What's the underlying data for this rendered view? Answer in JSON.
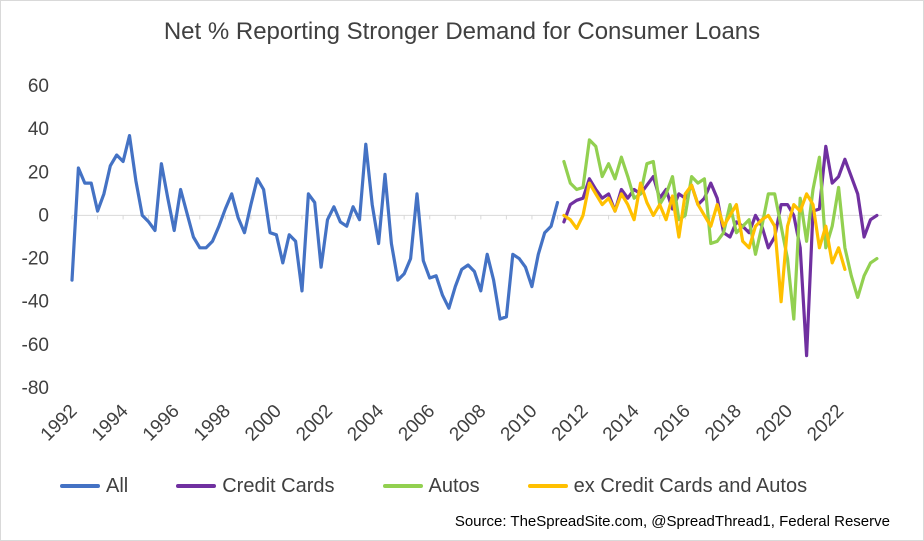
{
  "chart_data": {
    "type": "line",
    "title": "Net % Reporting Stronger Demand for Consumer Loans",
    "source": "Source: TheSpreadSite.com, @SpreadThread1, Federal Reserve",
    "xlim": [
      1992,
      2023.7
    ],
    "ylim": [
      -80,
      60
    ],
    "yticks": [
      60,
      40,
      20,
      0,
      -20,
      -40,
      -60,
      -80
    ],
    "xticks": [
      1992,
      1994,
      1996,
      1998,
      2000,
      2002,
      2004,
      2006,
      2008,
      2010,
      2012,
      2014,
      2016,
      2018,
      2020,
      2022
    ],
    "grid": false,
    "legend_position": "bottom",
    "series": [
      {
        "name": "All",
        "color": "#4472c4",
        "points": [
          [
            1992,
            -30
          ],
          [
            1992.25,
            22
          ],
          [
            1992.5,
            15
          ],
          [
            1992.75,
            15
          ],
          [
            1993,
            2
          ],
          [
            1993.25,
            10
          ],
          [
            1993.5,
            23
          ],
          [
            1993.75,
            28
          ],
          [
            1994,
            25
          ],
          [
            1994.25,
            37
          ],
          [
            1994.5,
            16
          ],
          [
            1994.75,
            0
          ],
          [
            1995,
            -3
          ],
          [
            1995.25,
            -7
          ],
          [
            1995.5,
            24
          ],
          [
            1995.75,
            8
          ],
          [
            1996,
            -7
          ],
          [
            1996.25,
            12
          ],
          [
            1996.5,
            1
          ],
          [
            1996.75,
            -10
          ],
          [
            1997,
            -15
          ],
          [
            1997.25,
            -15
          ],
          [
            1997.5,
            -12
          ],
          [
            1997.75,
            -5
          ],
          [
            1998,
            3
          ],
          [
            1998.25,
            10
          ],
          [
            1998.5,
            -1
          ],
          [
            1998.75,
            -8
          ],
          [
            1999,
            5
          ],
          [
            1999.25,
            17
          ],
          [
            1999.5,
            12
          ],
          [
            1999.75,
            -8
          ],
          [
            2000,
            -9
          ],
          [
            2000.25,
            -22
          ],
          [
            2000.5,
            -9
          ],
          [
            2000.75,
            -12
          ],
          [
            2001,
            -35
          ],
          [
            2001.25,
            10
          ],
          [
            2001.5,
            6
          ],
          [
            2001.75,
            -24
          ],
          [
            2002,
            -2
          ],
          [
            2002.25,
            4
          ],
          [
            2002.5,
            -3
          ],
          [
            2002.75,
            -5
          ],
          [
            2003,
            4
          ],
          [
            2003.25,
            -2
          ],
          [
            2003.5,
            33
          ],
          [
            2003.75,
            5
          ],
          [
            2004,
            -13
          ],
          [
            2004.25,
            19
          ],
          [
            2004.5,
            -13
          ],
          [
            2004.75,
            -30
          ],
          [
            2005,
            -27
          ],
          [
            2005.25,
            -20
          ],
          [
            2005.5,
            10
          ],
          [
            2005.75,
            -21
          ],
          [
            2006,
            -29
          ],
          [
            2006.25,
            -28
          ],
          [
            2006.5,
            -37
          ],
          [
            2006.75,
            -43
          ],
          [
            2007,
            -33
          ],
          [
            2007.25,
            -25
          ],
          [
            2007.5,
            -23
          ],
          [
            2007.75,
            -26
          ],
          [
            2008,
            -35
          ],
          [
            2008.25,
            -18
          ],
          [
            2008.5,
            -30
          ],
          [
            2008.75,
            -48
          ],
          [
            2009,
            -47
          ],
          [
            2009.25,
            -18
          ],
          [
            2009.5,
            -20
          ],
          [
            2009.75,
            -24
          ],
          [
            2010,
            -33
          ],
          [
            2010.25,
            -18
          ],
          [
            2010.5,
            -8
          ],
          [
            2010.75,
            -5
          ],
          [
            2011,
            6
          ]
        ]
      },
      {
        "name": "Credit Cards",
        "color": "#7030a0",
        "points": [
          [
            2011.25,
            -3
          ],
          [
            2011.5,
            5
          ],
          [
            2011.75,
            7
          ],
          [
            2012,
            8
          ],
          [
            2012.25,
            17
          ],
          [
            2012.5,
            12
          ],
          [
            2012.75,
            8
          ],
          [
            2013,
            10
          ],
          [
            2013.25,
            2
          ],
          [
            2013.5,
            12
          ],
          [
            2013.75,
            8
          ],
          [
            2014,
            12
          ],
          [
            2014.25,
            10
          ],
          [
            2014.5,
            14
          ],
          [
            2014.75,
            18
          ],
          [
            2015,
            8
          ],
          [
            2015.25,
            12
          ],
          [
            2015.5,
            3
          ],
          [
            2015.75,
            10
          ],
          [
            2016,
            8
          ],
          [
            2016.25,
            14
          ],
          [
            2016.5,
            5
          ],
          [
            2016.75,
            8
          ],
          [
            2017,
            15
          ],
          [
            2017.25,
            8
          ],
          [
            2017.5,
            -8
          ],
          [
            2017.75,
            -10
          ],
          [
            2018,
            -3
          ],
          [
            2018.25,
            -5
          ],
          [
            2018.5,
            -8
          ],
          [
            2018.75,
            0
          ],
          [
            2019,
            -5
          ],
          [
            2019.25,
            -15
          ],
          [
            2019.5,
            -10
          ],
          [
            2019.75,
            5
          ],
          [
            2020,
            5
          ],
          [
            2020.25,
            0
          ],
          [
            2020.5,
            -15
          ],
          [
            2020.75,
            -65
          ],
          [
            2021,
            2
          ],
          [
            2021.25,
            3
          ],
          [
            2021.5,
            32
          ],
          [
            2021.75,
            15
          ],
          [
            2022,
            18
          ],
          [
            2022.25,
            26
          ],
          [
            2022.5,
            18
          ],
          [
            2022.75,
            10
          ],
          [
            2023,
            -10
          ],
          [
            2023.25,
            -2
          ],
          [
            2023.5,
            0
          ]
        ]
      },
      {
        "name": "Autos",
        "color": "#92d050",
        "points": [
          [
            2011.25,
            25
          ],
          [
            2011.5,
            15
          ],
          [
            2011.75,
            12
          ],
          [
            2012,
            13
          ],
          [
            2012.25,
            35
          ],
          [
            2012.5,
            32
          ],
          [
            2012.75,
            18
          ],
          [
            2013,
            24
          ],
          [
            2013.25,
            17
          ],
          [
            2013.5,
            27
          ],
          [
            2013.75,
            18
          ],
          [
            2014,
            8
          ],
          [
            2014.25,
            10
          ],
          [
            2014.5,
            24
          ],
          [
            2014.75,
            25
          ],
          [
            2015,
            5
          ],
          [
            2015.25,
            10
          ],
          [
            2015.5,
            18
          ],
          [
            2015.75,
            -2
          ],
          [
            2016,
            0
          ],
          [
            2016.25,
            18
          ],
          [
            2016.5,
            15
          ],
          [
            2016.75,
            17
          ],
          [
            2017,
            -13
          ],
          [
            2017.25,
            -12
          ],
          [
            2017.5,
            -8
          ],
          [
            2017.75,
            5
          ],
          [
            2018,
            -8
          ],
          [
            2018.25,
            -5
          ],
          [
            2018.5,
            -2
          ],
          [
            2018.75,
            -18
          ],
          [
            2019,
            -5
          ],
          [
            2019.25,
            10
          ],
          [
            2019.5,
            10
          ],
          [
            2019.75,
            -5
          ],
          [
            2020,
            -20
          ],
          [
            2020.25,
            -48
          ],
          [
            2020.5,
            8
          ],
          [
            2020.75,
            -12
          ],
          [
            2021,
            12
          ],
          [
            2021.25,
            27
          ],
          [
            2021.5,
            -15
          ],
          [
            2021.75,
            -5
          ],
          [
            2022,
            13
          ],
          [
            2022.25,
            -15
          ],
          [
            2022.5,
            -28
          ],
          [
            2022.75,
            -38
          ],
          [
            2023,
            -28
          ],
          [
            2023.25,
            -22
          ],
          [
            2023.5,
            -20
          ]
        ]
      },
      {
        "name": "ex Credit Cards and Autos",
        "color": "#ffc000",
        "points": [
          [
            2011.25,
            0
          ],
          [
            2011.5,
            -2
          ],
          [
            2011.75,
            -6
          ],
          [
            2012,
            0
          ],
          [
            2012.25,
            15
          ],
          [
            2012.5,
            10
          ],
          [
            2012.75,
            5
          ],
          [
            2013,
            8
          ],
          [
            2013.25,
            2
          ],
          [
            2013.5,
            10
          ],
          [
            2013.75,
            5
          ],
          [
            2014,
            -2
          ],
          [
            2014.25,
            15
          ],
          [
            2014.5,
            6
          ],
          [
            2014.75,
            0
          ],
          [
            2015,
            5
          ],
          [
            2015.25,
            -2
          ],
          [
            2015.5,
            9
          ],
          [
            2015.75,
            -10
          ],
          [
            2016,
            10
          ],
          [
            2016.25,
            14
          ],
          [
            2016.5,
            5
          ],
          [
            2016.75,
            0
          ],
          [
            2017,
            -5
          ],
          [
            2017.25,
            5
          ],
          [
            2017.5,
            -5
          ],
          [
            2017.75,
            0
          ],
          [
            2018,
            5
          ],
          [
            2018.25,
            -12
          ],
          [
            2018.5,
            -15
          ],
          [
            2018.75,
            -5
          ],
          [
            2019,
            -2
          ],
          [
            2019.25,
            0
          ],
          [
            2019.5,
            -5
          ],
          [
            2019.75,
            -40
          ],
          [
            2020,
            -5
          ],
          [
            2020.25,
            5
          ],
          [
            2020.5,
            2
          ],
          [
            2020.75,
            10
          ],
          [
            2021,
            5
          ],
          [
            2021.25,
            -15
          ],
          [
            2021.5,
            -5
          ],
          [
            2021.75,
            -22
          ],
          [
            2022,
            -15
          ],
          [
            2022.25,
            -25
          ]
        ]
      }
    ]
  }
}
